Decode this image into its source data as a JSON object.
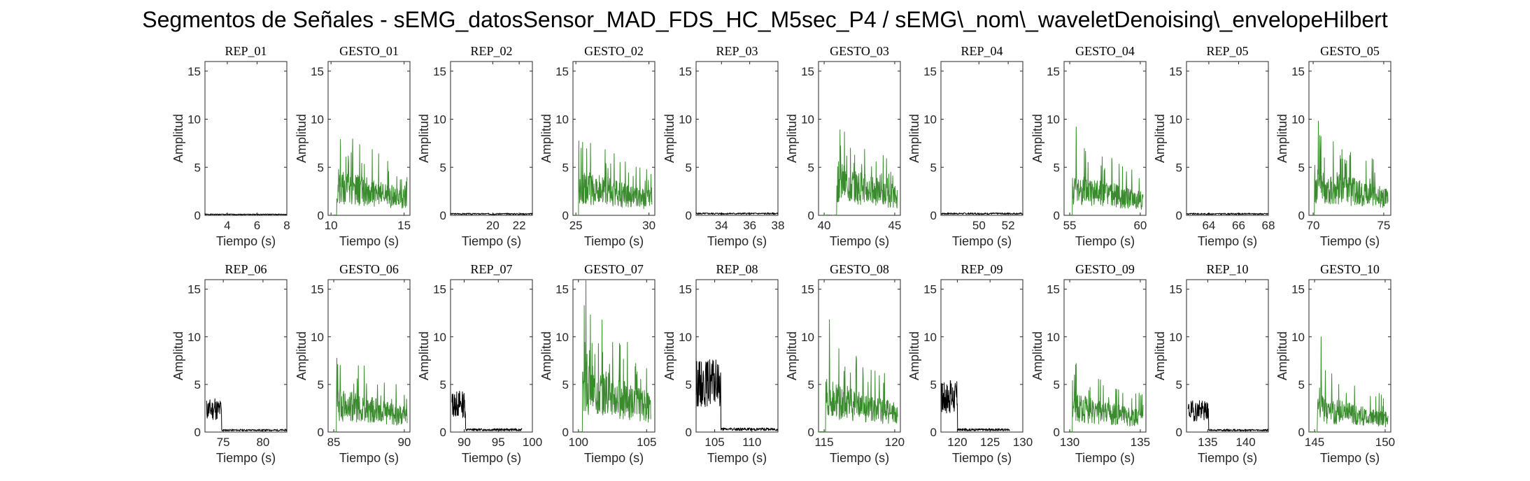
{
  "figure": {
    "title": "Segmentos de Señales - sEMG_datosSensor_MAD_FDS_HC_M5sec_P4 / sEMG\\_nom\\_waveletDenoising\\_envelopeHilbert"
  },
  "colors": {
    "rep": "#000000",
    "gesto": "#3a8a2e",
    "axis": "#262626"
  },
  "chart_data": [
    {
      "type": "line",
      "title": "REP_01",
      "xlabel": "Tiempo (s)",
      "ylabel": "Amplitud",
      "xlim": [
        2.5,
        8
      ],
      "ylim": [
        0,
        16
      ],
      "xticks": [
        4,
        6,
        8
      ],
      "yticks": [
        0,
        5,
        10,
        15
      ],
      "series": [
        {
          "name": "",
          "kind": "rep",
          "seed": 1,
          "x_start": 2.5,
          "x_end": 8,
          "active_end": 2.5,
          "peak": 0.3,
          "baseline": 0.1
        }
      ]
    },
    {
      "type": "line",
      "title": "GESTO_01",
      "xlabel": "Tiempo (s)",
      "ylabel": "Amplitud",
      "xlim": [
        9.8,
        15.4
      ],
      "ylim": [
        0,
        16
      ],
      "xticks": [
        10,
        15
      ],
      "yticks": [
        0,
        5,
        10,
        15
      ],
      "series": [
        {
          "name": "",
          "kind": "gesto",
          "seed": 2,
          "x_start": 10,
          "x_end": 15.2,
          "onset": 10.4,
          "peak": 7.9,
          "mean": 2.3
        }
      ]
    },
    {
      "type": "line",
      "title": "REP_02",
      "xlabel": "Tiempo (s)",
      "ylabel": "Amplitud",
      "xlim": [
        16.8,
        23
      ],
      "ylim": [
        0,
        16
      ],
      "xticks": [
        20,
        22
      ],
      "yticks": [
        0,
        5,
        10,
        15
      ],
      "series": [
        {
          "name": "",
          "kind": "rep",
          "seed": 3,
          "x_start": 16.8,
          "x_end": 23,
          "active_end": 16.8,
          "peak": 0.3,
          "baseline": 0.15
        }
      ]
    },
    {
      "type": "line",
      "title": "GESTO_02",
      "xlabel": "Tiempo (s)",
      "ylabel": "Amplitud",
      "xlim": [
        24.8,
        30.4
      ],
      "ylim": [
        0,
        16
      ],
      "xticks": [
        25,
        30
      ],
      "yticks": [
        0,
        5,
        10,
        15
      ],
      "series": [
        {
          "name": "",
          "kind": "gesto",
          "seed": 4,
          "x_start": 25,
          "x_end": 30.2,
          "onset": 25.2,
          "peak": 7.6,
          "mean": 2.2
        }
      ]
    },
    {
      "type": "line",
      "title": "REP_03",
      "xlabel": "Tiempo (s)",
      "ylabel": "Amplitud",
      "xlim": [
        32.2,
        38
      ],
      "ylim": [
        0,
        16
      ],
      "xticks": [
        34,
        36,
        38
      ],
      "yticks": [
        0,
        5,
        10,
        15
      ],
      "series": [
        {
          "name": "",
          "kind": "rep",
          "seed": 5,
          "x_start": 32.2,
          "x_end": 38,
          "active_end": 32.2,
          "peak": 0.35,
          "baseline": 0.18
        }
      ]
    },
    {
      "type": "line",
      "title": "GESTO_03",
      "xlabel": "Tiempo (s)",
      "ylabel": "Amplitud",
      "xlim": [
        39.6,
        45.4
      ],
      "ylim": [
        0,
        16
      ],
      "xticks": [
        40,
        45
      ],
      "yticks": [
        0,
        5,
        10,
        15
      ],
      "series": [
        {
          "name": "",
          "kind": "gesto",
          "seed": 6,
          "x_start": 40,
          "x_end": 45.2,
          "onset": 40.9,
          "peak": 8.9,
          "mean": 2.6
        }
      ]
    },
    {
      "type": "line",
      "title": "REP_04",
      "xlabel": "Tiempo (s)",
      "ylabel": "Amplitud",
      "xlim": [
        47.4,
        53
      ],
      "ylim": [
        0,
        16
      ],
      "xticks": [
        50,
        52
      ],
      "yticks": [
        0,
        5,
        10,
        15
      ],
      "series": [
        {
          "name": "",
          "kind": "rep",
          "seed": 7,
          "x_start": 47.4,
          "x_end": 53,
          "active_end": 47.4,
          "peak": 0.35,
          "baseline": 0.18
        }
      ]
    },
    {
      "type": "line",
      "title": "GESTO_04",
      "xlabel": "Tiempo (s)",
      "ylabel": "Amplitud",
      "xlim": [
        54.6,
        60.4
      ],
      "ylim": [
        0,
        16
      ],
      "xticks": [
        55,
        60
      ],
      "yticks": [
        0,
        5,
        10,
        15
      ],
      "series": [
        {
          "name": "",
          "kind": "gesto",
          "seed": 8,
          "x_start": 55,
          "x_end": 60.2,
          "onset": 55.2,
          "peak": 9.2,
          "mean": 2.1
        }
      ]
    },
    {
      "type": "line",
      "title": "REP_05",
      "xlabel": "Tiempo (s)",
      "ylabel": "Amplitud",
      "xlim": [
        62.5,
        68
      ],
      "ylim": [
        0,
        16
      ],
      "xticks": [
        64,
        66,
        68
      ],
      "yticks": [
        0,
        5,
        10,
        15
      ],
      "series": [
        {
          "name": "",
          "kind": "rep",
          "seed": 9,
          "x_start": 62.5,
          "x_end": 68,
          "active_end": 62.5,
          "peak": 0.3,
          "baseline": 0.15
        }
      ]
    },
    {
      "type": "line",
      "title": "GESTO_05",
      "xlabel": "Tiempo (s)",
      "ylabel": "Amplitud",
      "xlim": [
        69.7,
        75.5
      ],
      "ylim": [
        0,
        16
      ],
      "xticks": [
        70,
        75
      ],
      "yticks": [
        0,
        5,
        10,
        15
      ],
      "series": [
        {
          "name": "",
          "kind": "gesto",
          "seed": 10,
          "x_start": 70,
          "x_end": 75.3,
          "onset": 70.1,
          "peak": 9.8,
          "mean": 2.4
        }
      ]
    },
    {
      "type": "line",
      "title": "REP_06",
      "xlabel": "Tiempo (s)",
      "ylabel": "Amplitud",
      "xlim": [
        72.7,
        83
      ],
      "ylim": [
        0,
        16
      ],
      "xticks": [
        75,
        80
      ],
      "yticks": [
        0,
        5,
        10,
        15
      ],
      "series": [
        {
          "name": "",
          "kind": "rep",
          "seed": 11,
          "x_start": 72.9,
          "x_end": 83,
          "active_end": 74.8,
          "peak": 3.5,
          "baseline": 0.2
        }
      ]
    },
    {
      "type": "line",
      "title": "GESTO_06",
      "xlabel": "Tiempo (s)",
      "ylabel": "Amplitud",
      "xlim": [
        84.6,
        90.4
      ],
      "ylim": [
        0,
        16
      ],
      "xticks": [
        85,
        90
      ],
      "yticks": [
        0,
        5,
        10,
        15
      ],
      "series": [
        {
          "name": "",
          "kind": "gesto",
          "seed": 12,
          "x_start": 85,
          "x_end": 90.2,
          "onset": 85.2,
          "peak": 7.0,
          "mean": 2.2
        }
      ]
    },
    {
      "type": "line",
      "title": "REP_07",
      "xlabel": "Tiempo (s)",
      "ylabel": "Amplitud",
      "xlim": [
        88,
        100
      ],
      "ylim": [
        0,
        16
      ],
      "xticks": [
        90,
        95,
        100
      ],
      "yticks": [
        0,
        5,
        10,
        15
      ],
      "series": [
        {
          "name": "",
          "kind": "rep",
          "seed": 13,
          "x_start": 88.2,
          "x_end": 98.5,
          "active_end": 90.2,
          "peak": 4.3,
          "baseline": 0.25
        }
      ]
    },
    {
      "type": "line",
      "title": "GESTO_07",
      "xlabel": "Tiempo (s)",
      "ylabel": "Amplitud",
      "xlim": [
        99.6,
        105.6
      ],
      "ylim": [
        0,
        16
      ],
      "xticks": [
        100,
        105
      ],
      "yticks": [
        0,
        5,
        10,
        15
      ],
      "series": [
        {
          "name": "",
          "kind": "gesto",
          "seed": 14,
          "x_start": 100,
          "x_end": 105.3,
          "onset": 100.3,
          "peak": 16,
          "mean": 3.5
        }
      ]
    },
    {
      "type": "line",
      "title": "REP_08",
      "xlabel": "Tiempo (s)",
      "ylabel": "Amplitud",
      "xlim": [
        102.5,
        113.5
      ],
      "ylim": [
        0,
        16
      ],
      "xticks": [
        105,
        110
      ],
      "yticks": [
        0,
        5,
        10,
        15
      ],
      "series": [
        {
          "name": "",
          "kind": "rep",
          "seed": 15,
          "x_start": 102.5,
          "x_end": 113.5,
          "active_end": 105.8,
          "peak": 7.6,
          "baseline": 0.3
        }
      ]
    },
    {
      "type": "line",
      "title": "GESTO_08",
      "xlabel": "Tiempo (s)",
      "ylabel": "Amplitud",
      "xlim": [
        114.6,
        120.4
      ],
      "ylim": [
        0,
        16
      ],
      "xticks": [
        115,
        120
      ],
      "yticks": [
        0,
        5,
        10,
        15
      ],
      "series": [
        {
          "name": "",
          "kind": "gesto",
          "seed": 16,
          "x_start": 114.6,
          "x_end": 120.2,
          "onset": 115.1,
          "peak": 11.8,
          "mean": 2.6
        }
      ]
    },
    {
      "type": "line",
      "title": "REP_09",
      "xlabel": "Tiempo (s)",
      "ylabel": "Amplitud",
      "xlim": [
        117.5,
        130
      ],
      "ylim": [
        0,
        16
      ],
      "xticks": [
        120,
        125,
        130
      ],
      "yticks": [
        0,
        5,
        10,
        15
      ],
      "series": [
        {
          "name": "",
          "kind": "rep",
          "seed": 17,
          "x_start": 117.6,
          "x_end": 128,
          "active_end": 120,
          "peak": 5.4,
          "baseline": 0.25
        }
      ]
    },
    {
      "type": "line",
      "title": "GESTO_09",
      "xlabel": "Tiempo (s)",
      "ylabel": "Amplitud",
      "xlim": [
        129.6,
        135.4
      ],
      "ylim": [
        0,
        16
      ],
      "xticks": [
        130,
        135
      ],
      "yticks": [
        0,
        5,
        10,
        15
      ],
      "series": [
        {
          "name": "",
          "kind": "gesto",
          "seed": 18,
          "x_start": 130,
          "x_end": 135.2,
          "onset": 130.2,
          "peak": 7.2,
          "mean": 1.9
        }
      ]
    },
    {
      "type": "line",
      "title": "REP_10",
      "xlabel": "Tiempo (s)",
      "ylabel": "Amplitud",
      "xlim": [
        132.2,
        143
      ],
      "ylim": [
        0,
        16
      ],
      "xticks": [
        135,
        140
      ],
      "yticks": [
        0,
        5,
        10,
        15
      ],
      "series": [
        {
          "name": "",
          "kind": "rep",
          "seed": 19,
          "x_start": 132.4,
          "x_end": 143,
          "active_end": 135.1,
          "peak": 3.3,
          "baseline": 0.2
        }
      ]
    },
    {
      "type": "line",
      "title": "GESTO_10",
      "xlabel": "Tiempo (s)",
      "ylabel": "Amplitud",
      "xlim": [
        144.6,
        150.4
      ],
      "ylim": [
        0,
        16
      ],
      "xticks": [
        145,
        150
      ],
      "yticks": [
        0,
        5,
        10,
        15
      ],
      "series": [
        {
          "name": "",
          "kind": "gesto",
          "seed": 20,
          "x_start": 144.6,
          "x_end": 150.2,
          "onset": 145.2,
          "peak": 10,
          "mean": 1.8
        }
      ]
    }
  ]
}
